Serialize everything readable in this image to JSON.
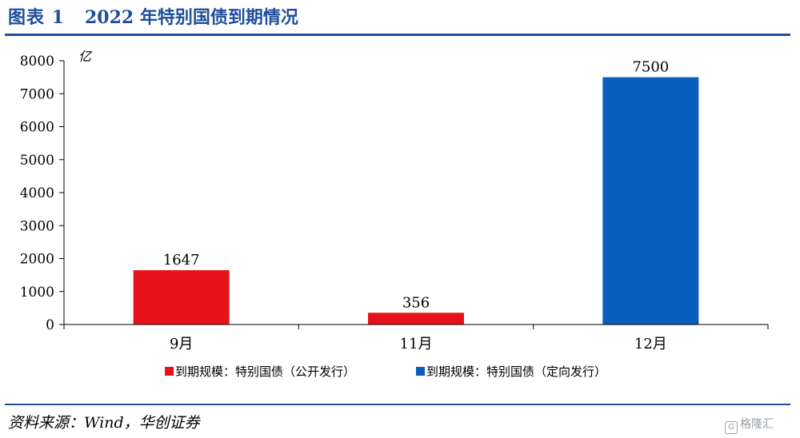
{
  "header": {
    "figure_label": "图表 1",
    "title": "2022 年特别国债到期情况"
  },
  "footer": {
    "source": "资料来源：Wind，华创证券",
    "watermark": "格隆汇"
  },
  "chart_data": {
    "type": "bar",
    "categories": [
      "9月",
      "11月",
      "12月"
    ],
    "values": [
      1647,
      356,
      7500
    ],
    "data_labels": [
      "1647",
      "356",
      "7500"
    ],
    "series_index": [
      0,
      0,
      1
    ],
    "series": [
      {
        "name": "到期规模：特别国债（公开发行）",
        "color": "#e8121b"
      },
      {
        "name": "到期规模：特别国债（定向发行）",
        "color": "#0a5ebd"
      }
    ],
    "ylabel": "亿",
    "ylim": [
      0,
      8000
    ],
    "yticks": [
      "0",
      "1000",
      "2000",
      "3000",
      "4000",
      "5000",
      "6000",
      "7000",
      "8000"
    ],
    "grid": false,
    "legend_position": "bottom"
  }
}
